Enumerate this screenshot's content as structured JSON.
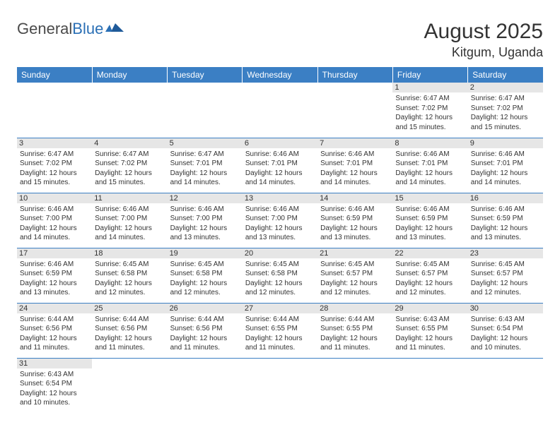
{
  "logo": {
    "text_general": "General",
    "text_blue": "Blue"
  },
  "title": "August 2025",
  "location": "Kitgum, Uganda",
  "colors": {
    "header_bg": "#3b7fc4",
    "header_text": "#ffffff",
    "daynum_bg": "#e6e6e6",
    "cell_border": "#3b7fc4",
    "text": "#333333",
    "logo_gray": "#4a4a4a",
    "logo_blue": "#2a6fb5"
  },
  "days_of_week": [
    "Sunday",
    "Monday",
    "Tuesday",
    "Wednesday",
    "Thursday",
    "Friday",
    "Saturday"
  ],
  "weeks": [
    [
      null,
      null,
      null,
      null,
      null,
      {
        "n": "1",
        "sr": "Sunrise: 6:47 AM",
        "ss": "Sunset: 7:02 PM",
        "d1": "Daylight: 12 hours",
        "d2": "and 15 minutes."
      },
      {
        "n": "2",
        "sr": "Sunrise: 6:47 AM",
        "ss": "Sunset: 7:02 PM",
        "d1": "Daylight: 12 hours",
        "d2": "and 15 minutes."
      }
    ],
    [
      {
        "n": "3",
        "sr": "Sunrise: 6:47 AM",
        "ss": "Sunset: 7:02 PM",
        "d1": "Daylight: 12 hours",
        "d2": "and 15 minutes."
      },
      {
        "n": "4",
        "sr": "Sunrise: 6:47 AM",
        "ss": "Sunset: 7:02 PM",
        "d1": "Daylight: 12 hours",
        "d2": "and 15 minutes."
      },
      {
        "n": "5",
        "sr": "Sunrise: 6:47 AM",
        "ss": "Sunset: 7:01 PM",
        "d1": "Daylight: 12 hours",
        "d2": "and 14 minutes."
      },
      {
        "n": "6",
        "sr": "Sunrise: 6:46 AM",
        "ss": "Sunset: 7:01 PM",
        "d1": "Daylight: 12 hours",
        "d2": "and 14 minutes."
      },
      {
        "n": "7",
        "sr": "Sunrise: 6:46 AM",
        "ss": "Sunset: 7:01 PM",
        "d1": "Daylight: 12 hours",
        "d2": "and 14 minutes."
      },
      {
        "n": "8",
        "sr": "Sunrise: 6:46 AM",
        "ss": "Sunset: 7:01 PM",
        "d1": "Daylight: 12 hours",
        "d2": "and 14 minutes."
      },
      {
        "n": "9",
        "sr": "Sunrise: 6:46 AM",
        "ss": "Sunset: 7:01 PM",
        "d1": "Daylight: 12 hours",
        "d2": "and 14 minutes."
      }
    ],
    [
      {
        "n": "10",
        "sr": "Sunrise: 6:46 AM",
        "ss": "Sunset: 7:00 PM",
        "d1": "Daylight: 12 hours",
        "d2": "and 14 minutes."
      },
      {
        "n": "11",
        "sr": "Sunrise: 6:46 AM",
        "ss": "Sunset: 7:00 PM",
        "d1": "Daylight: 12 hours",
        "d2": "and 14 minutes."
      },
      {
        "n": "12",
        "sr": "Sunrise: 6:46 AM",
        "ss": "Sunset: 7:00 PM",
        "d1": "Daylight: 12 hours",
        "d2": "and 13 minutes."
      },
      {
        "n": "13",
        "sr": "Sunrise: 6:46 AM",
        "ss": "Sunset: 7:00 PM",
        "d1": "Daylight: 12 hours",
        "d2": "and 13 minutes."
      },
      {
        "n": "14",
        "sr": "Sunrise: 6:46 AM",
        "ss": "Sunset: 6:59 PM",
        "d1": "Daylight: 12 hours",
        "d2": "and 13 minutes."
      },
      {
        "n": "15",
        "sr": "Sunrise: 6:46 AM",
        "ss": "Sunset: 6:59 PM",
        "d1": "Daylight: 12 hours",
        "d2": "and 13 minutes."
      },
      {
        "n": "16",
        "sr": "Sunrise: 6:46 AM",
        "ss": "Sunset: 6:59 PM",
        "d1": "Daylight: 12 hours",
        "d2": "and 13 minutes."
      }
    ],
    [
      {
        "n": "17",
        "sr": "Sunrise: 6:46 AM",
        "ss": "Sunset: 6:59 PM",
        "d1": "Daylight: 12 hours",
        "d2": "and 13 minutes."
      },
      {
        "n": "18",
        "sr": "Sunrise: 6:45 AM",
        "ss": "Sunset: 6:58 PM",
        "d1": "Daylight: 12 hours",
        "d2": "and 12 minutes."
      },
      {
        "n": "19",
        "sr": "Sunrise: 6:45 AM",
        "ss": "Sunset: 6:58 PM",
        "d1": "Daylight: 12 hours",
        "d2": "and 12 minutes."
      },
      {
        "n": "20",
        "sr": "Sunrise: 6:45 AM",
        "ss": "Sunset: 6:58 PM",
        "d1": "Daylight: 12 hours",
        "d2": "and 12 minutes."
      },
      {
        "n": "21",
        "sr": "Sunrise: 6:45 AM",
        "ss": "Sunset: 6:57 PM",
        "d1": "Daylight: 12 hours",
        "d2": "and 12 minutes."
      },
      {
        "n": "22",
        "sr": "Sunrise: 6:45 AM",
        "ss": "Sunset: 6:57 PM",
        "d1": "Daylight: 12 hours",
        "d2": "and 12 minutes."
      },
      {
        "n": "23",
        "sr": "Sunrise: 6:45 AM",
        "ss": "Sunset: 6:57 PM",
        "d1": "Daylight: 12 hours",
        "d2": "and 12 minutes."
      }
    ],
    [
      {
        "n": "24",
        "sr": "Sunrise: 6:44 AM",
        "ss": "Sunset: 6:56 PM",
        "d1": "Daylight: 12 hours",
        "d2": "and 11 minutes."
      },
      {
        "n": "25",
        "sr": "Sunrise: 6:44 AM",
        "ss": "Sunset: 6:56 PM",
        "d1": "Daylight: 12 hours",
        "d2": "and 11 minutes."
      },
      {
        "n": "26",
        "sr": "Sunrise: 6:44 AM",
        "ss": "Sunset: 6:56 PM",
        "d1": "Daylight: 12 hours",
        "d2": "and 11 minutes."
      },
      {
        "n": "27",
        "sr": "Sunrise: 6:44 AM",
        "ss": "Sunset: 6:55 PM",
        "d1": "Daylight: 12 hours",
        "d2": "and 11 minutes."
      },
      {
        "n": "28",
        "sr": "Sunrise: 6:44 AM",
        "ss": "Sunset: 6:55 PM",
        "d1": "Daylight: 12 hours",
        "d2": "and 11 minutes."
      },
      {
        "n": "29",
        "sr": "Sunrise: 6:43 AM",
        "ss": "Sunset: 6:55 PM",
        "d1": "Daylight: 12 hours",
        "d2": "and 11 minutes."
      },
      {
        "n": "30",
        "sr": "Sunrise: 6:43 AM",
        "ss": "Sunset: 6:54 PM",
        "d1": "Daylight: 12 hours",
        "d2": "and 10 minutes."
      }
    ],
    [
      {
        "n": "31",
        "sr": "Sunrise: 6:43 AM",
        "ss": "Sunset: 6:54 PM",
        "d1": "Daylight: 12 hours",
        "d2": "and 10 minutes."
      },
      null,
      null,
      null,
      null,
      null,
      null
    ]
  ]
}
